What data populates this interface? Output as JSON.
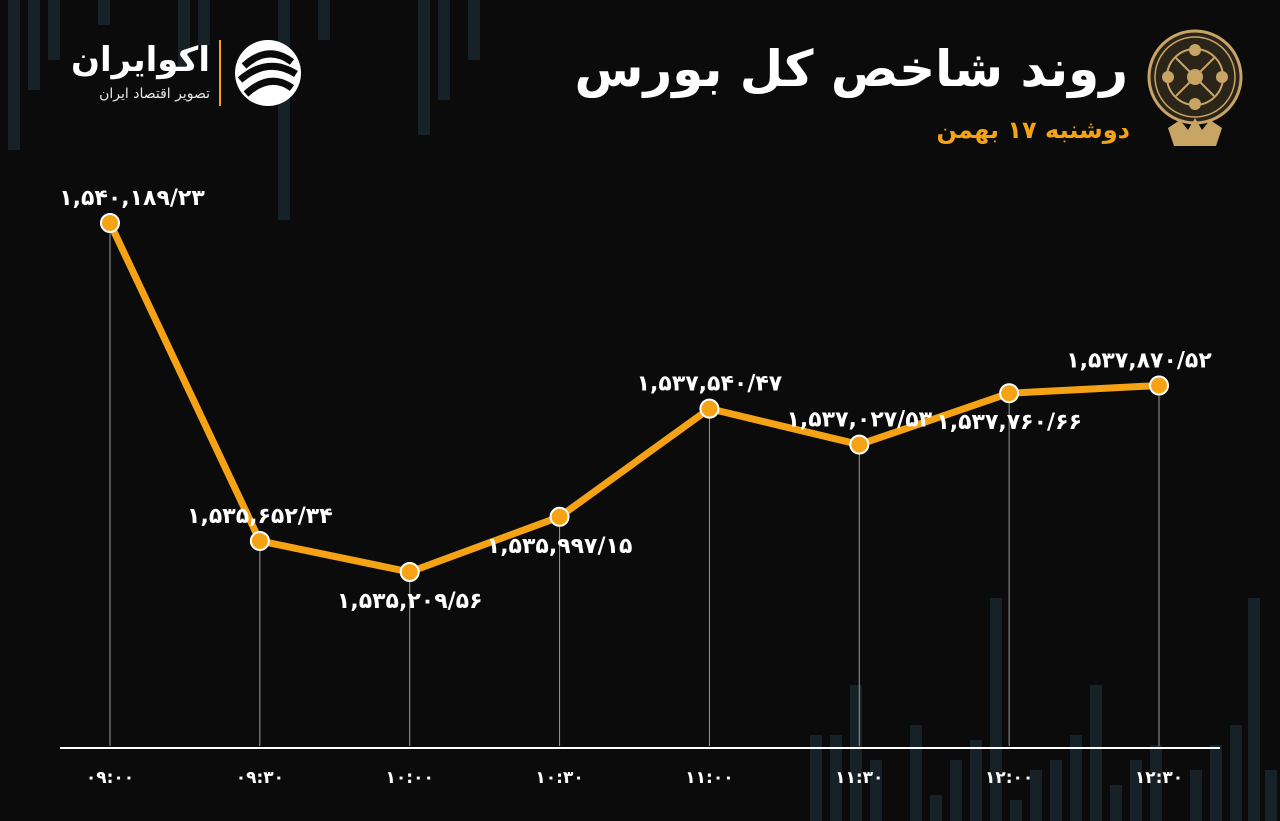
{
  "header": {
    "title": "روند شاخص کل بورس",
    "subtitle": "دوشنبه ۱۷ بهمن"
  },
  "brand": {
    "name": "اکوایران",
    "tagline": "تصویر اقتصاد ایران",
    "accent_color": "#f5a314",
    "emblem_icon": "stock-exchange-emblem-icon",
    "logo_icon": "ecoiran-logo-icon"
  },
  "chart_data": {
    "type": "line",
    "title": "روند شاخص کل بورس",
    "categories": [
      "۰۹:۰۰",
      "۰۹:۳۰",
      "۱۰:۰۰",
      "۱۰:۳۰",
      "۱۱:۰۰",
      "۱۱:۳۰",
      "۱۲:۰۰",
      "۱۲:۳۰"
    ],
    "values": [
      1540189.23,
      1535652.34,
      1535209.56,
      1535997.15,
      1537540.47,
      1537027.53,
      1537760.66,
      1537870.52
    ],
    "labels": [
      "۱,۵۴۰,۱۸۹/۲۳",
      "۱,۵۳۵,۶۵۲/۳۴",
      "۱,۵۳۵,۲۰۹/۵۶",
      "۱,۵۳۵,۹۹۷/۱۵",
      "۱,۵۳۷,۵۴۰/۴۷",
      "۱,۵۳۷,۰۲۷/۵۳",
      "۱,۵۳۷,۷۶۰/۶۶",
      "۱,۵۳۷,۸۷۰/۵۲"
    ],
    "line_color": "#f5a314",
    "marker_color": "#f5a314",
    "grid": false,
    "legend": "none"
  }
}
